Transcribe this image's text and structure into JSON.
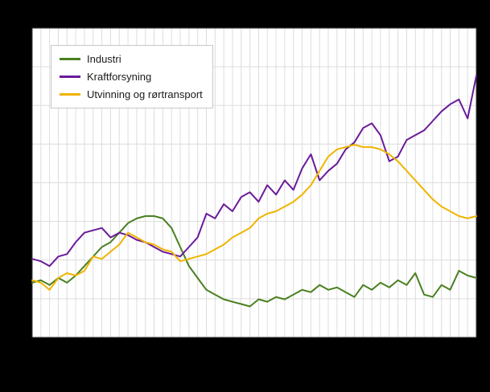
{
  "chart_data": {
    "type": "line",
    "title": "",
    "xlabel": "",
    "ylabel": "",
    "axis_tick_labels_visible": false,
    "legend_position": "top-left",
    "figure_background": "#000000",
    "plot_background": "#ffffff",
    "ylim": [
      50,
      180
    ],
    "grid": {
      "on": true,
      "horizontal_lines": 8,
      "vertical_per_point": true,
      "color": "#dcdcdc"
    },
    "series": [
      {
        "name": "Industri",
        "color": "#4a8020",
        "values": [
          73,
          74,
          72,
          75,
          73,
          76,
          80,
          84,
          88,
          90,
          94,
          98,
          100,
          101,
          101,
          100,
          96,
          88,
          80,
          75,
          70,
          68,
          66,
          65,
          64,
          63,
          66,
          65,
          67,
          66,
          68,
          70,
          69,
          72,
          70,
          71,
          69,
          67,
          72,
          70,
          73,
          71,
          74,
          72,
          77,
          68,
          67,
          72,
          70,
          78,
          76,
          75
        ]
      },
      {
        "name": "Kraftforsyning",
        "color": "#6a1b9a",
        "values": [
          83,
          82,
          80,
          84,
          85,
          90,
          94,
          95,
          96,
          92,
          94,
          93,
          91,
          90,
          88,
          86,
          85,
          84,
          88,
          92,
          102,
          100,
          106,
          103,
          109,
          111,
          107,
          114,
          110,
          116,
          112,
          121,
          127,
          116,
          120,
          123,
          129,
          132,
          138,
          140,
          135,
          124,
          126,
          133,
          135,
          137,
          141,
          145,
          148,
          150,
          142,
          160
        ]
      },
      {
        "name": "Utvinning og rørtransport",
        "color": "#f0b400",
        "values": [
          74,
          73,
          70,
          75,
          77,
          76,
          78,
          84,
          83,
          86,
          89,
          94,
          92,
          90,
          89,
          87,
          86,
          82,
          83,
          84,
          85,
          87,
          89,
          92,
          94,
          96,
          100,
          102,
          103,
          105,
          107,
          110,
          114,
          120,
          126,
          129,
          130,
          131,
          130,
          130,
          129,
          127,
          124,
          120,
          116,
          112,
          108,
          105,
          103,
          101,
          100,
          101
        ]
      }
    ]
  }
}
